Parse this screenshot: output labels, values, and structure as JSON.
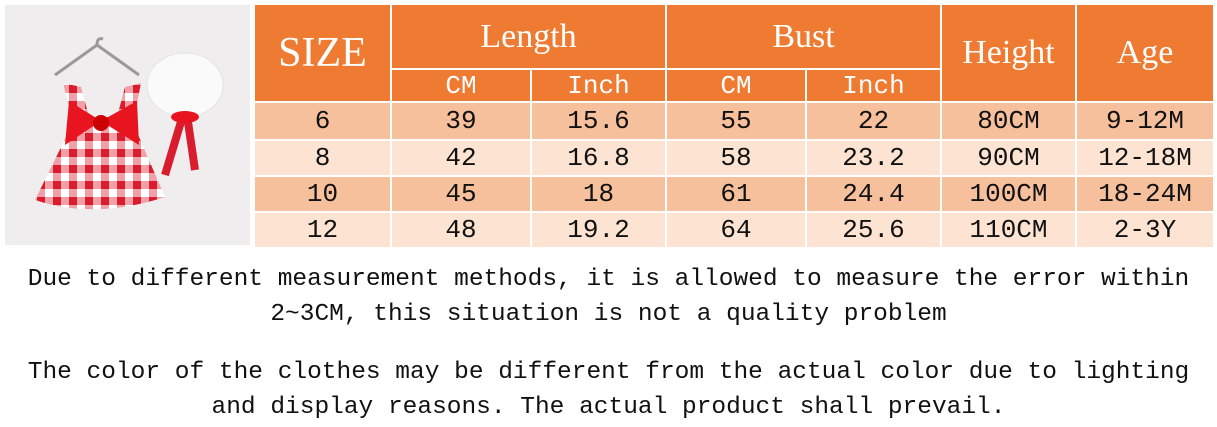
{
  "header": {
    "size": "SIZE",
    "length": "Length",
    "bust": "Bust",
    "height": "Height",
    "age": "Age",
    "units": [
      "CM",
      "Inch",
      "CM",
      "Inch"
    ]
  },
  "table": {
    "rows": [
      [
        "6",
        "39",
        "15.6",
        "55",
        "22",
        "80CM",
        "9-12M"
      ],
      [
        "8",
        "42",
        "16.8",
        "58",
        "23.2",
        "90CM",
        "12-18M"
      ],
      [
        "10",
        "45",
        "18",
        "61",
        "24.4",
        "100CM",
        "18-24M"
      ],
      [
        "12",
        "48",
        "19.2",
        "64",
        "25.6",
        "110CM",
        "2-3Y"
      ]
    ]
  },
  "notes": [
    [
      "Due to different measurement methods, it is allowed to measure the error within",
      "2~3CM, this situation is not a quality problem"
    ],
    [
      "The color of the clothes may be different from the actual color due to lighting",
      "and display reasons. The actual product shall prevail."
    ]
  ]
}
